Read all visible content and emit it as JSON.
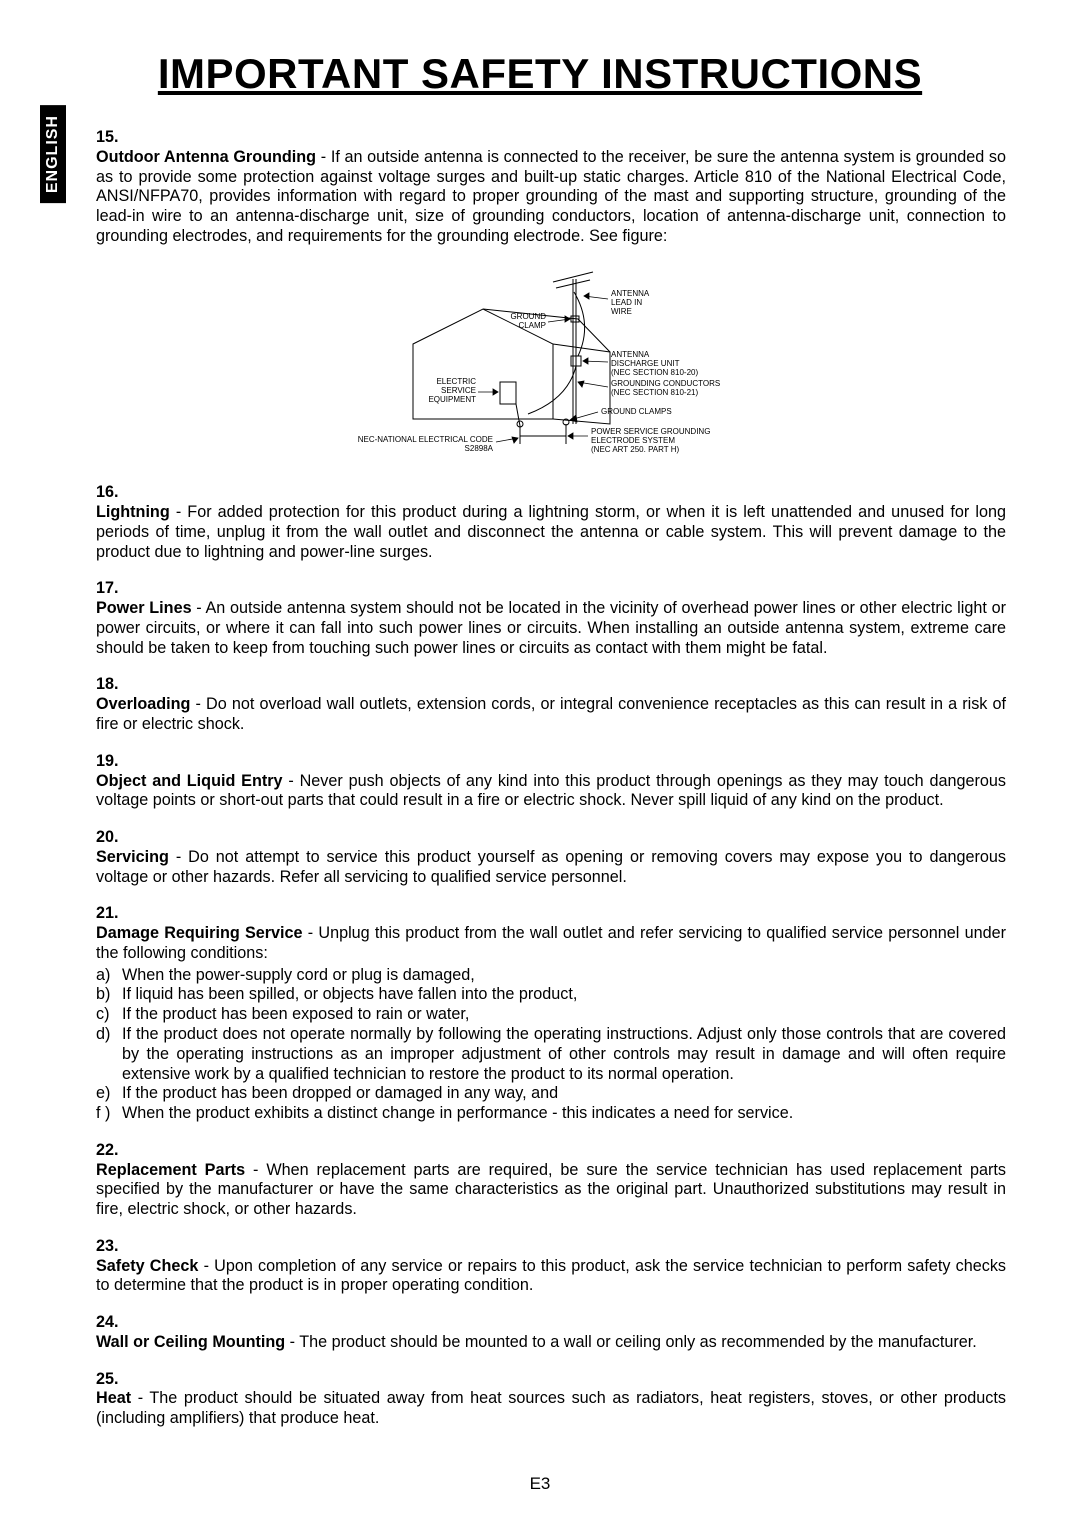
{
  "lang_tab": "ENGLISH",
  "title": "IMPORTANT SAFETY INSTRUCTIONS",
  "page_number": "E3",
  "figure": {
    "labels": {
      "antenna_lead": "ANTENNA\nLEAD IN\nWIRE",
      "ground_clamp_top": "GROUND\nCLAMP",
      "antenna_discharge": "ANTENNA\nDISCHARGE UNIT\n(NEC SECTION 810-20)",
      "electric_service": "ELECTRIC\nSERVICE\nEQUIPMENT",
      "grounding_conductors": "GROUNDING CONDUCTORS\n(NEC SECTION 810-21)",
      "ground_clamps_bottom": "GROUND CLAMPS",
      "power_service": "POWER SERVICE GROUNDING\nELECTRODE SYSTEM\n(NEC ART 250. PART H)",
      "nec_code": "NEC-NATIONAL ELECTRICAL CODE\nS2898A"
    }
  },
  "items": [
    {
      "num": "15.",
      "title": "Outdoor Antenna Grounding",
      "text": " - If an outside antenna is connected to the receiver, be sure the antenna system is grounded so as to provide some protection against voltage surges and built-up static charges. Article 810 of the National Electrical Code, ANSI/NFPA70, provides information with regard to proper grounding of the mast and supporting structure, grounding of the lead-in wire to an antenna-discharge unit, size of grounding conductors, location of antenna-discharge unit, connection to grounding electrodes, and requirements for the grounding electrode. See figure:"
    },
    {
      "num": "16.",
      "title": "Lightning",
      "text": " - For added protection for this product during a lightning storm, or when it is left unattended and unused for long periods of time, unplug it from the wall outlet and disconnect the antenna or cable system. This will prevent damage to the product due to lightning and power-line surges."
    },
    {
      "num": "17.",
      "title": "Power Lines",
      "text": " - An outside antenna system should not be located in the vicinity of overhead power lines or other electric light or power circuits, or where it can fall into such power lines or circuits. When installing an outside antenna system, extreme care should be taken to keep from touching such power lines or circuits as contact with them might be fatal."
    },
    {
      "num": "18.",
      "title": "Overloading",
      "text": " - Do not overload wall outlets, extension cords, or integral convenience receptacles as this can result in a risk of fire or electric shock."
    },
    {
      "num": "19.",
      "title": "Object and Liquid Entry",
      "text": " - Never push objects of any kind into this product through openings as they may touch dangerous voltage points or short-out parts that could result in a fire or electric shock. Never spill liquid of any kind on the product."
    },
    {
      "num": "20.",
      "title": "Servicing",
      "text": " - Do not attempt to service this product yourself as opening or removing covers may expose you to dangerous voltage or other hazards. Refer all servicing to qualified service personnel."
    },
    {
      "num": "21.",
      "title": "Damage Requiring Service",
      "text": " - Unplug this product from the wall outlet and refer servicing to qualified service personnel under the following conditions:",
      "subs": [
        {
          "l": "a)",
          "t": "When the power-supply cord or plug is damaged,"
        },
        {
          "l": "b)",
          "t": "If liquid has been spilled, or objects have fallen into the product,"
        },
        {
          "l": "c)",
          "t": "If the product has been exposed to rain or water,"
        },
        {
          "l": "d)",
          "t": "If the product does not operate normally by following the operating instructions. Adjust only those controls that are covered by the operating instructions as an improper adjustment of other controls may result in damage and will often require extensive work by a qualified technician to restore the product to its normal operation."
        },
        {
          "l": "e)",
          "t": "If the product has been dropped or damaged in any way, and"
        },
        {
          "l": "f )",
          "t": "When the product exhibits a distinct change in performance - this indicates a need for service."
        }
      ]
    },
    {
      "num": "22.",
      "title": "Replacement Parts",
      "text": " - When replacement parts are required, be sure the service technician has used replacement parts specified by the manufacturer or have the same characteristics as the original part. Unauthorized substitutions may result in fire, electric shock, or other hazards."
    },
    {
      "num": "23.",
      "title": "Safety Check",
      "text": " - Upon completion of any service or repairs to this product, ask the service technician to perform safety checks to determine that the product is in proper operating condition."
    },
    {
      "num": "24.",
      "title": "Wall or Ceiling Mounting",
      "text": " - The product should be mounted to a wall or ceiling only as recommended by the manufacturer."
    },
    {
      "num": "25.",
      "title": "Heat",
      "text": " - The product should be situated away from heat sources such as radiators, heat registers, stoves, or other products (including amplifiers) that produce heat."
    }
  ]
}
